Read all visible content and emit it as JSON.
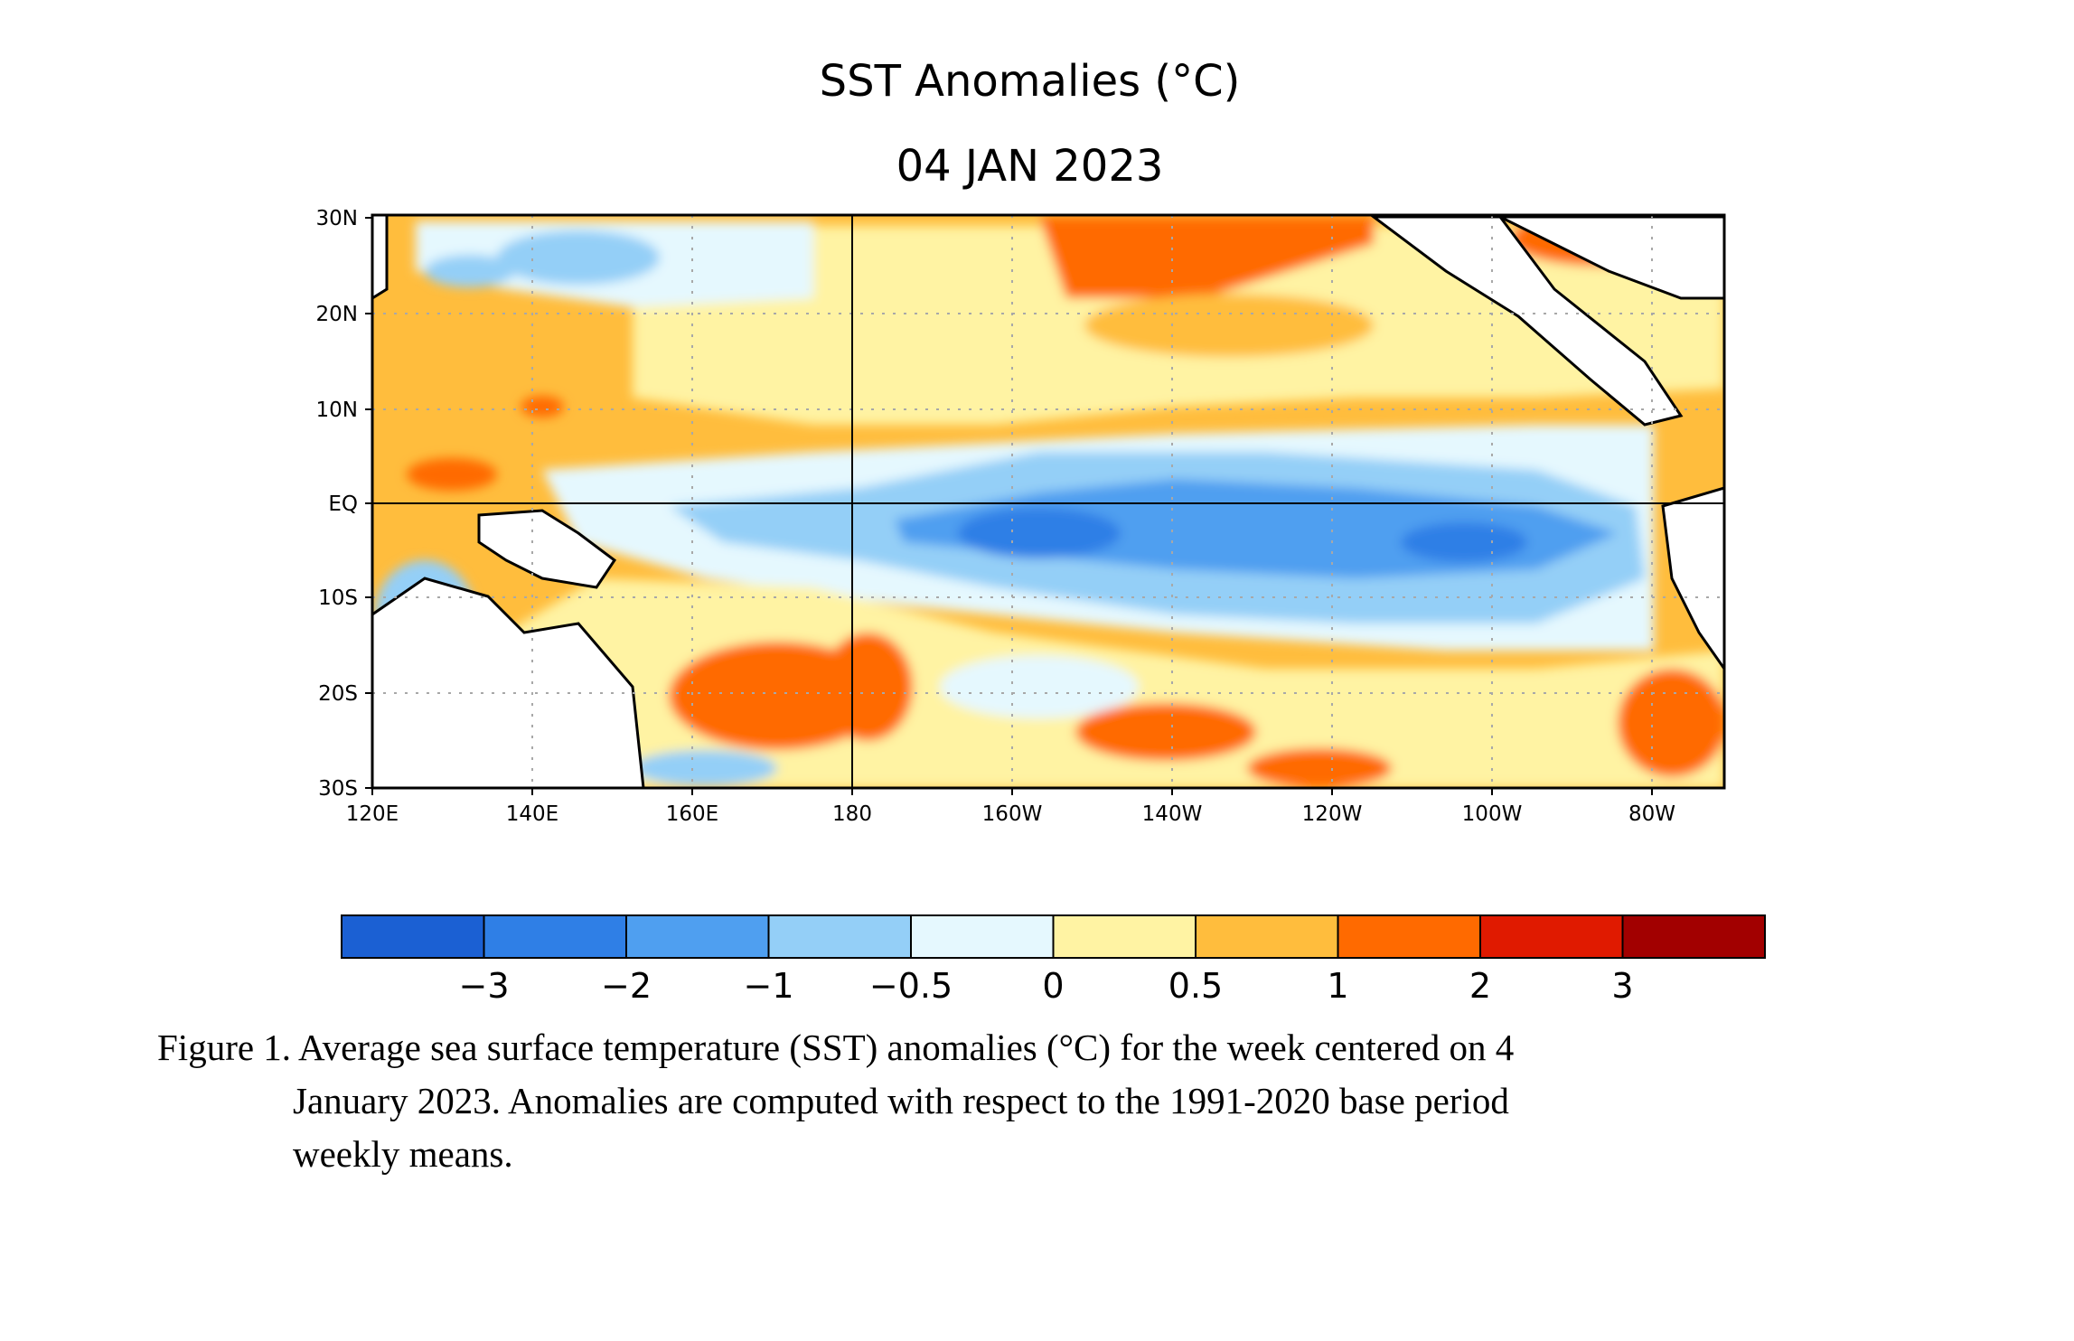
{
  "figure": {
    "title": "SST Anomalies (°C)",
    "date": "04 JAN 2023"
  },
  "map": {
    "x_ticks": [
      "120E",
      "140E",
      "160E",
      "180",
      "160W",
      "140W",
      "120W",
      "100W",
      "80W"
    ],
    "y_ticks": [
      "30N",
      "20N",
      "10N",
      "EQ",
      "10S",
      "20S",
      "30S"
    ],
    "x_range": "120E–70W",
    "y_range": "30S–30N"
  },
  "colorbar": {
    "colors": [
      "#1b60d3",
      "#2f7fe6",
      "#4f9ff0",
      "#94cff7",
      "#e5f8fe",
      "#fff3a3",
      "#ffbd3d",
      "#ff6a00",
      "#e01a00",
      "#a20000"
    ],
    "tick_labels": [
      "−3",
      "−2",
      "−1",
      "−0.5",
      "0",
      "0.5",
      "1",
      "2",
      "3"
    ]
  },
  "caption": {
    "line1": "Figure 1. Average sea surface temperature (SST) anomalies (°C) for the week centered on 4",
    "line2": "January 2023.  Anomalies are computed with respect to the 1991-2020 base period",
    "line3": "weekly means."
  }
}
